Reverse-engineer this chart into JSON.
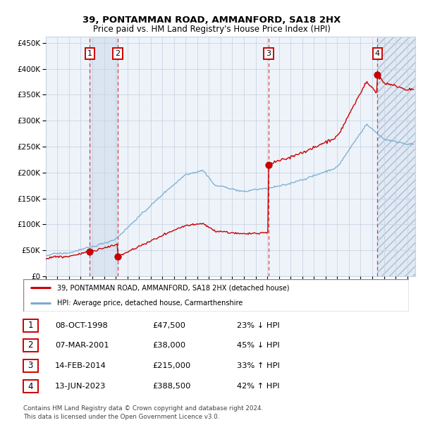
{
  "title1": "39, PONTAMMAN ROAD, AMMANFORD, SA18 2HX",
  "title2": "Price paid vs. HM Land Registry's House Price Index (HPI)",
  "ylabel_ticks": [
    "£0",
    "£50K",
    "£100K",
    "£150K",
    "£200K",
    "£250K",
    "£300K",
    "£350K",
    "£400K",
    "£450K"
  ],
  "ytick_values": [
    0,
    50000,
    100000,
    150000,
    200000,
    250000,
    300000,
    350000,
    400000,
    450000
  ],
  "xlim_start": 1995.3,
  "xlim_end": 2026.7,
  "ylim": [
    0,
    462000
  ],
  "sale_dates": [
    1998.77,
    2001.18,
    2014.12,
    2023.45
  ],
  "sale_prices": [
    47500,
    38000,
    215000,
    388500
  ],
  "sale_labels": [
    "1",
    "2",
    "3",
    "4"
  ],
  "legend_line1": "39, PONTAMMAN ROAD, AMMANFORD, SA18 2HX (detached house)",
  "legend_line2": "HPI: Average price, detached house, Carmarthenshire",
  "table_data": [
    [
      "1",
      "08-OCT-1998",
      "£47,500",
      "23% ↓ HPI"
    ],
    [
      "2",
      "07-MAR-2001",
      "£38,000",
      "45% ↓ HPI"
    ],
    [
      "3",
      "14-FEB-2014",
      "£215,000",
      "33% ↑ HPI"
    ],
    [
      "4",
      "13-JUN-2023",
      "£388,500",
      "42% ↑ HPI"
    ]
  ],
  "footnote1": "Contains HM Land Registry data © Crown copyright and database right 2024.",
  "footnote2": "This data is licensed under the Open Government Licence v3.0.",
  "plot_bg": "#eef3fa",
  "grid_color": "#c8d4e3",
  "line_red": "#cc0000",
  "line_blue": "#7aabcc"
}
